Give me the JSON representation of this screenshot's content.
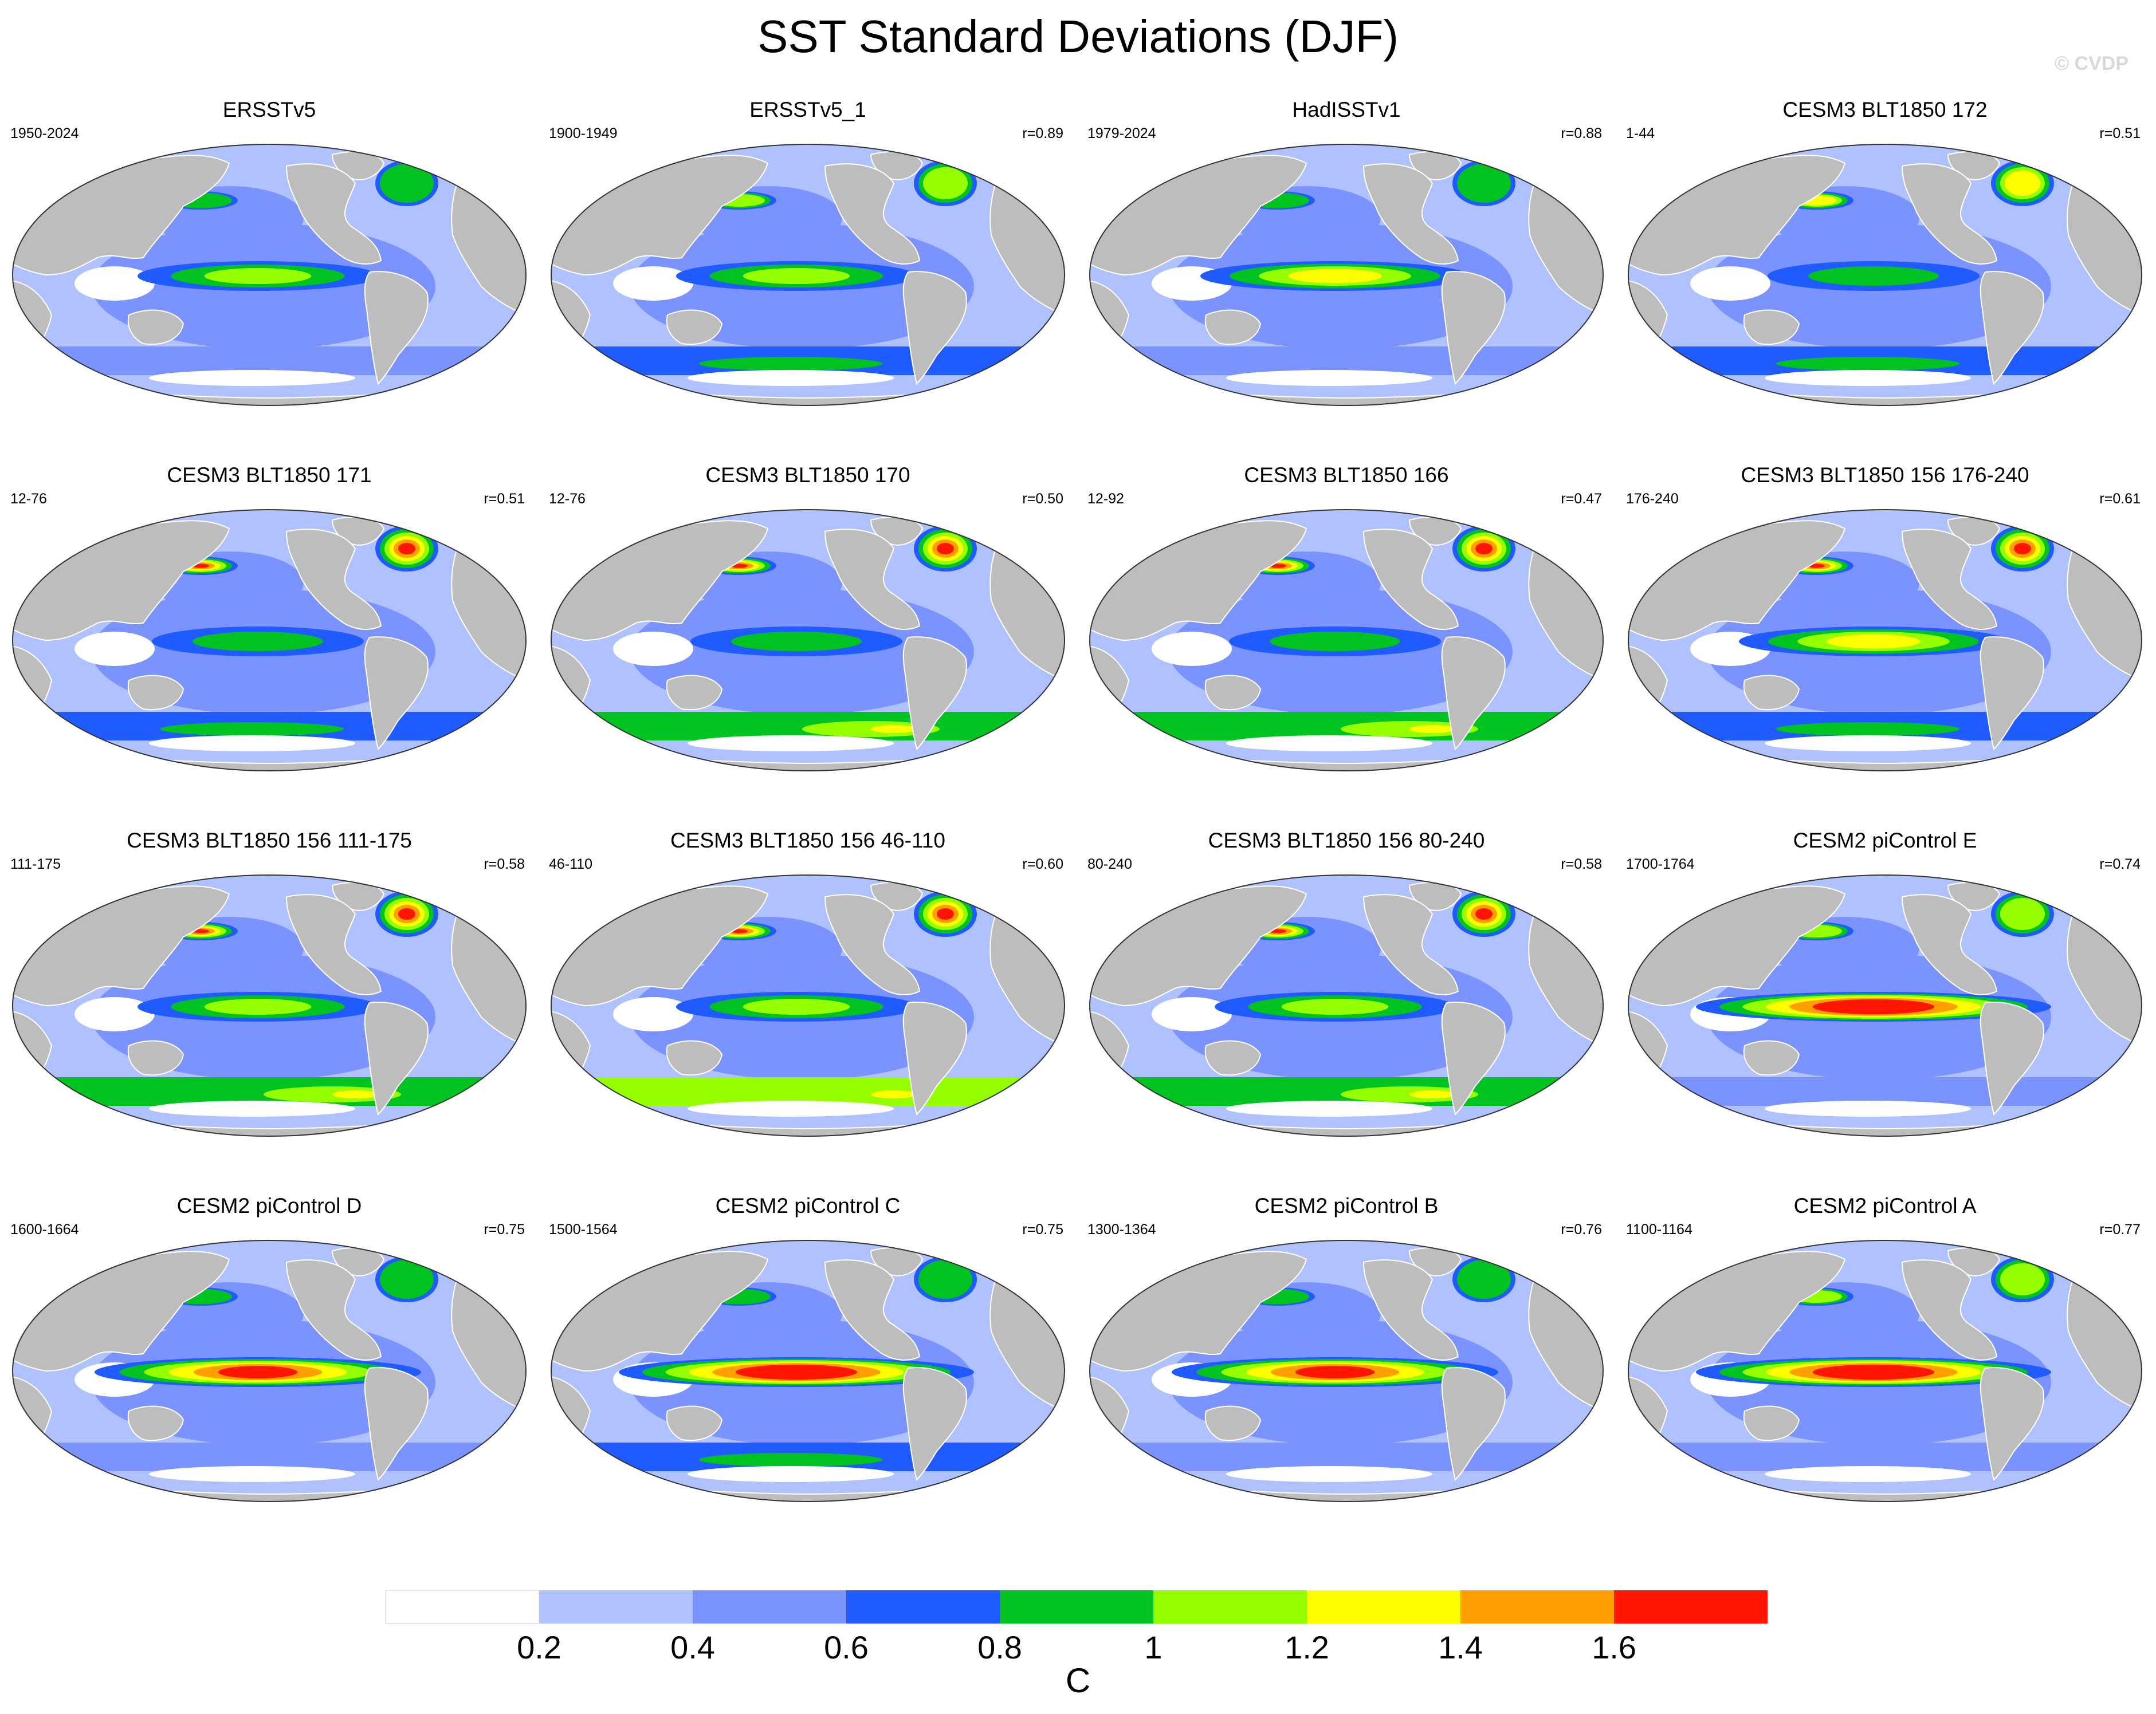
{
  "title": "SST Standard Deviations (DJF)",
  "watermark": "© CVDP",
  "colors": {
    "land": "#bdbdbd",
    "levels": [
      "#ffffff",
      "#afc2ff",
      "#7b93ff",
      "#1f5bff",
      "#00c321",
      "#95ff00",
      "#ffff00",
      "#ffa000",
      "#ff1500"
    ]
  },
  "colorbar": {
    "tick_labels": [
      "0.2",
      "0.4",
      "0.6",
      "0.8",
      "1",
      "1.2",
      "1.4",
      "1.6"
    ],
    "units": "C"
  },
  "panels": [
    {
      "title": "ERSSTv5",
      "period": "1950-2024",
      "corr": "",
      "enso": 2,
      "subpolar": 2,
      "south": 2
    },
    {
      "title": "ERSSTv5_1",
      "period": "1900-1949",
      "corr": "r=0.89",
      "enso": 2,
      "subpolar": 3,
      "south": 3
    },
    {
      "title": "HadISSTv1",
      "period": "1979-2024",
      "corr": "r=0.88",
      "enso": 3,
      "subpolar": 2,
      "south": 1
    },
    {
      "title": "CESM3 BLT1850 172",
      "period": "1-44",
      "corr": "r=0.51",
      "enso": 1,
      "subpolar": 4,
      "south": 3
    },
    {
      "title": "CESM3 BLT1850 171",
      "period": "12-76",
      "corr": "r=0.51",
      "enso": 1,
      "subpolar": 6,
      "south": 3
    },
    {
      "title": "CESM3 BLT1850 170",
      "period": "12-76",
      "corr": "r=0.50",
      "enso": 1,
      "subpolar": 6,
      "south": 4
    },
    {
      "title": "CESM3 BLT1850 166",
      "period": "12-92",
      "corr": "r=0.47",
      "enso": 1,
      "subpolar": 6,
      "south": 4
    },
    {
      "title": "CESM3 BLT1850 156 176-240",
      "period": "176-240",
      "corr": "r=0.61",
      "enso": 3,
      "subpolar": 6,
      "south": 3
    },
    {
      "title": "CESM3 BLT1850 156 111-175",
      "period": "111-175",
      "corr": "r=0.58",
      "enso": 2,
      "subpolar": 6,
      "south": 4
    },
    {
      "title": "CESM3 BLT1850 156 46-110",
      "period": "46-110",
      "corr": "r=0.60",
      "enso": 2,
      "subpolar": 6,
      "south": 5
    },
    {
      "title": "CESM3 BLT1850 156 80-240",
      "period": "80-240",
      "corr": "r=0.58",
      "enso": 2,
      "subpolar": 6,
      "south": 4
    },
    {
      "title": "CESM2 piControl E",
      "period": "1700-1764",
      "corr": "r=0.74",
      "enso": 6,
      "subpolar": 3,
      "south": 2
    },
    {
      "title": "CESM2 piControl D",
      "period": "1600-1664",
      "corr": "r=0.75",
      "enso": 5,
      "subpolar": 2,
      "south": 2
    },
    {
      "title": "CESM2 piControl C",
      "period": "1500-1564",
      "corr": "r=0.75",
      "enso": 6,
      "subpolar": 2,
      "south": 3
    },
    {
      "title": "CESM2 piControl B",
      "period": "1300-1364",
      "corr": "r=0.76",
      "enso": 5,
      "subpolar": 2,
      "south": 2
    },
    {
      "title": "CESM2 piControl A",
      "period": "1100-1164",
      "corr": "r=0.77",
      "enso": 6,
      "subpolar": 3,
      "south": 2
    }
  ]
}
